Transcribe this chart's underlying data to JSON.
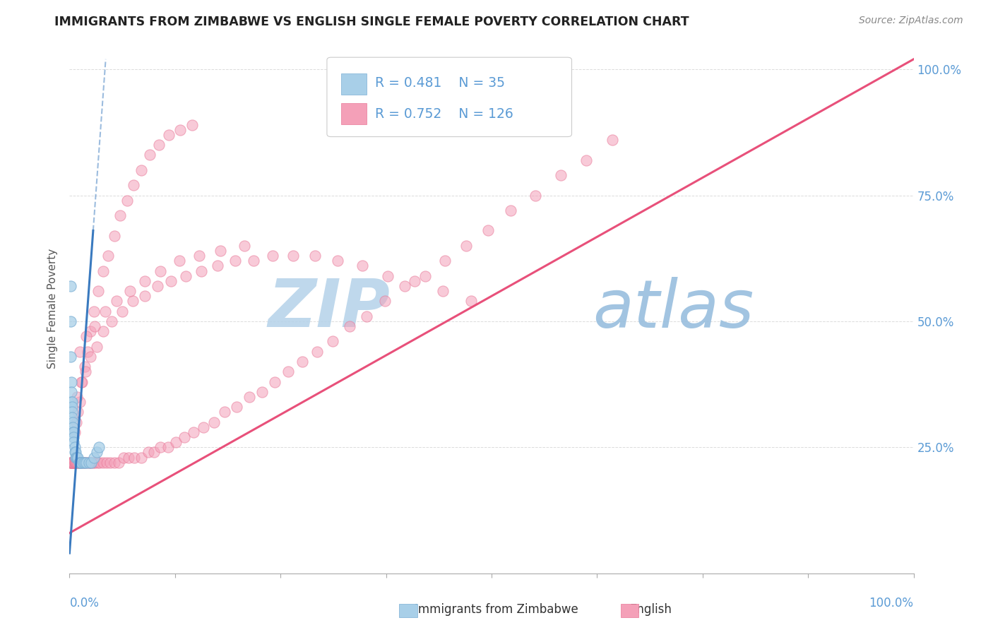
{
  "title": "IMMIGRANTS FROM ZIMBABWE VS ENGLISH SINGLE FEMALE POVERTY CORRELATION CHART",
  "source": "Source: ZipAtlas.com",
  "ylabel": "Single Female Poverty",
  "legend_r1": "R = 0.481",
  "legend_n1": "N = 35",
  "legend_r2": "R = 0.752",
  "legend_n2": "N = 126",
  "color_blue": "#a8cfe8",
  "color_blue_edge": "#7bafd4",
  "color_pink": "#f4a0b8",
  "color_pink_edge": "#e87898",
  "color_trend_blue": "#3a7abf",
  "color_trend_pink": "#e8507a",
  "watermark_zip": "#c8dff0",
  "watermark_atlas": "#b0cce8",
  "background_color": "#ffffff",
  "grid_color": "#cccccc",
  "axis_label_color": "#5b9bd5",
  "title_color": "#222222",
  "source_color": "#888888",
  "ylabel_color": "#555555",
  "blue_x": [
    0.001,
    0.001,
    0.001,
    0.002,
    0.002,
    0.002,
    0.003,
    0.003,
    0.003,
    0.003,
    0.004,
    0.004,
    0.004,
    0.005,
    0.005,
    0.005,
    0.006,
    0.006,
    0.007,
    0.007,
    0.008,
    0.009,
    0.01,
    0.011,
    0.012,
    0.013,
    0.014,
    0.016,
    0.018,
    0.02,
    0.023,
    0.026,
    0.029,
    0.032,
    0.035
  ],
  "blue_y": [
    0.57,
    0.5,
    0.43,
    0.38,
    0.36,
    0.34,
    0.34,
    0.33,
    0.32,
    0.31,
    0.3,
    0.29,
    0.28,
    0.28,
    0.27,
    0.26,
    0.25,
    0.24,
    0.24,
    0.23,
    0.23,
    0.23,
    0.23,
    0.22,
    0.22,
    0.22,
    0.22,
    0.22,
    0.22,
    0.22,
    0.22,
    0.22,
    0.23,
    0.24,
    0.25
  ],
  "blue_trend_x": [
    0.0,
    0.028
  ],
  "blue_trend_y": [
    0.04,
    0.68
  ],
  "pink_x": [
    0.001,
    0.001,
    0.001,
    0.002,
    0.002,
    0.003,
    0.003,
    0.004,
    0.004,
    0.005,
    0.005,
    0.006,
    0.006,
    0.007,
    0.007,
    0.008,
    0.009,
    0.01,
    0.011,
    0.012,
    0.013,
    0.015,
    0.016,
    0.018,
    0.02,
    0.022,
    0.024,
    0.026,
    0.028,
    0.03,
    0.033,
    0.036,
    0.04,
    0.044,
    0.048,
    0.053,
    0.058,
    0.064,
    0.07,
    0.077,
    0.085,
    0.093,
    0.1,
    0.108,
    0.117,
    0.126,
    0.136,
    0.147,
    0.159,
    0.171,
    0.184,
    0.198,
    0.213,
    0.228,
    0.243,
    0.259,
    0.276,
    0.293,
    0.312,
    0.332,
    0.352,
    0.374,
    0.397,
    0.421,
    0.445,
    0.47,
    0.496,
    0.523,
    0.552,
    0.582,
    0.612,
    0.643,
    0.006,
    0.008,
    0.01,
    0.012,
    0.015,
    0.018,
    0.021,
    0.025,
    0.029,
    0.034,
    0.04,
    0.046,
    0.053,
    0.06,
    0.068,
    0.076,
    0.085,
    0.095,
    0.106,
    0.118,
    0.131,
    0.145,
    0.009,
    0.014,
    0.019,
    0.025,
    0.032,
    0.04,
    0.05,
    0.062,
    0.075,
    0.089,
    0.104,
    0.12,
    0.138,
    0.156,
    0.175,
    0.196,
    0.218,
    0.241,
    0.265,
    0.291,
    0.318,
    0.347,
    0.377,
    0.409,
    0.442,
    0.476,
    0.012,
    0.02,
    0.03,
    0.042,
    0.056,
    0.072,
    0.089,
    0.108,
    0.13,
    0.154,
    0.179,
    0.207
  ],
  "pink_y": [
    0.22,
    0.22,
    0.22,
    0.22,
    0.22,
    0.22,
    0.22,
    0.22,
    0.22,
    0.22,
    0.22,
    0.22,
    0.22,
    0.22,
    0.22,
    0.22,
    0.22,
    0.22,
    0.22,
    0.22,
    0.22,
    0.22,
    0.22,
    0.22,
    0.22,
    0.22,
    0.22,
    0.22,
    0.22,
    0.22,
    0.22,
    0.22,
    0.22,
    0.22,
    0.22,
    0.22,
    0.22,
    0.23,
    0.23,
    0.23,
    0.23,
    0.24,
    0.24,
    0.25,
    0.25,
    0.26,
    0.27,
    0.28,
    0.29,
    0.3,
    0.32,
    0.33,
    0.35,
    0.36,
    0.38,
    0.4,
    0.42,
    0.44,
    0.46,
    0.49,
    0.51,
    0.54,
    0.57,
    0.59,
    0.62,
    0.65,
    0.68,
    0.72,
    0.75,
    0.79,
    0.82,
    0.86,
    0.28,
    0.3,
    0.32,
    0.34,
    0.38,
    0.41,
    0.44,
    0.48,
    0.52,
    0.56,
    0.6,
    0.63,
    0.67,
    0.71,
    0.74,
    0.77,
    0.8,
    0.83,
    0.85,
    0.87,
    0.88,
    0.89,
    0.35,
    0.38,
    0.4,
    0.43,
    0.45,
    0.48,
    0.5,
    0.52,
    0.54,
    0.55,
    0.57,
    0.58,
    0.59,
    0.6,
    0.61,
    0.62,
    0.62,
    0.63,
    0.63,
    0.63,
    0.62,
    0.61,
    0.59,
    0.58,
    0.56,
    0.54,
    0.44,
    0.47,
    0.49,
    0.52,
    0.54,
    0.56,
    0.58,
    0.6,
    0.62,
    0.63,
    0.64,
    0.65
  ],
  "pink_trend_x": [
    0.0,
    1.0
  ],
  "pink_trend_y": [
    0.08,
    1.02
  ],
  "xlim": [
    0.0,
    1.0
  ],
  "ylim": [
    0.0,
    1.05
  ],
  "yticks": [
    0.25,
    0.5,
    0.75,
    1.0
  ],
  "ytick_labels": [
    "25.0%",
    "50.0%",
    "75.0%",
    "100.0%"
  ]
}
